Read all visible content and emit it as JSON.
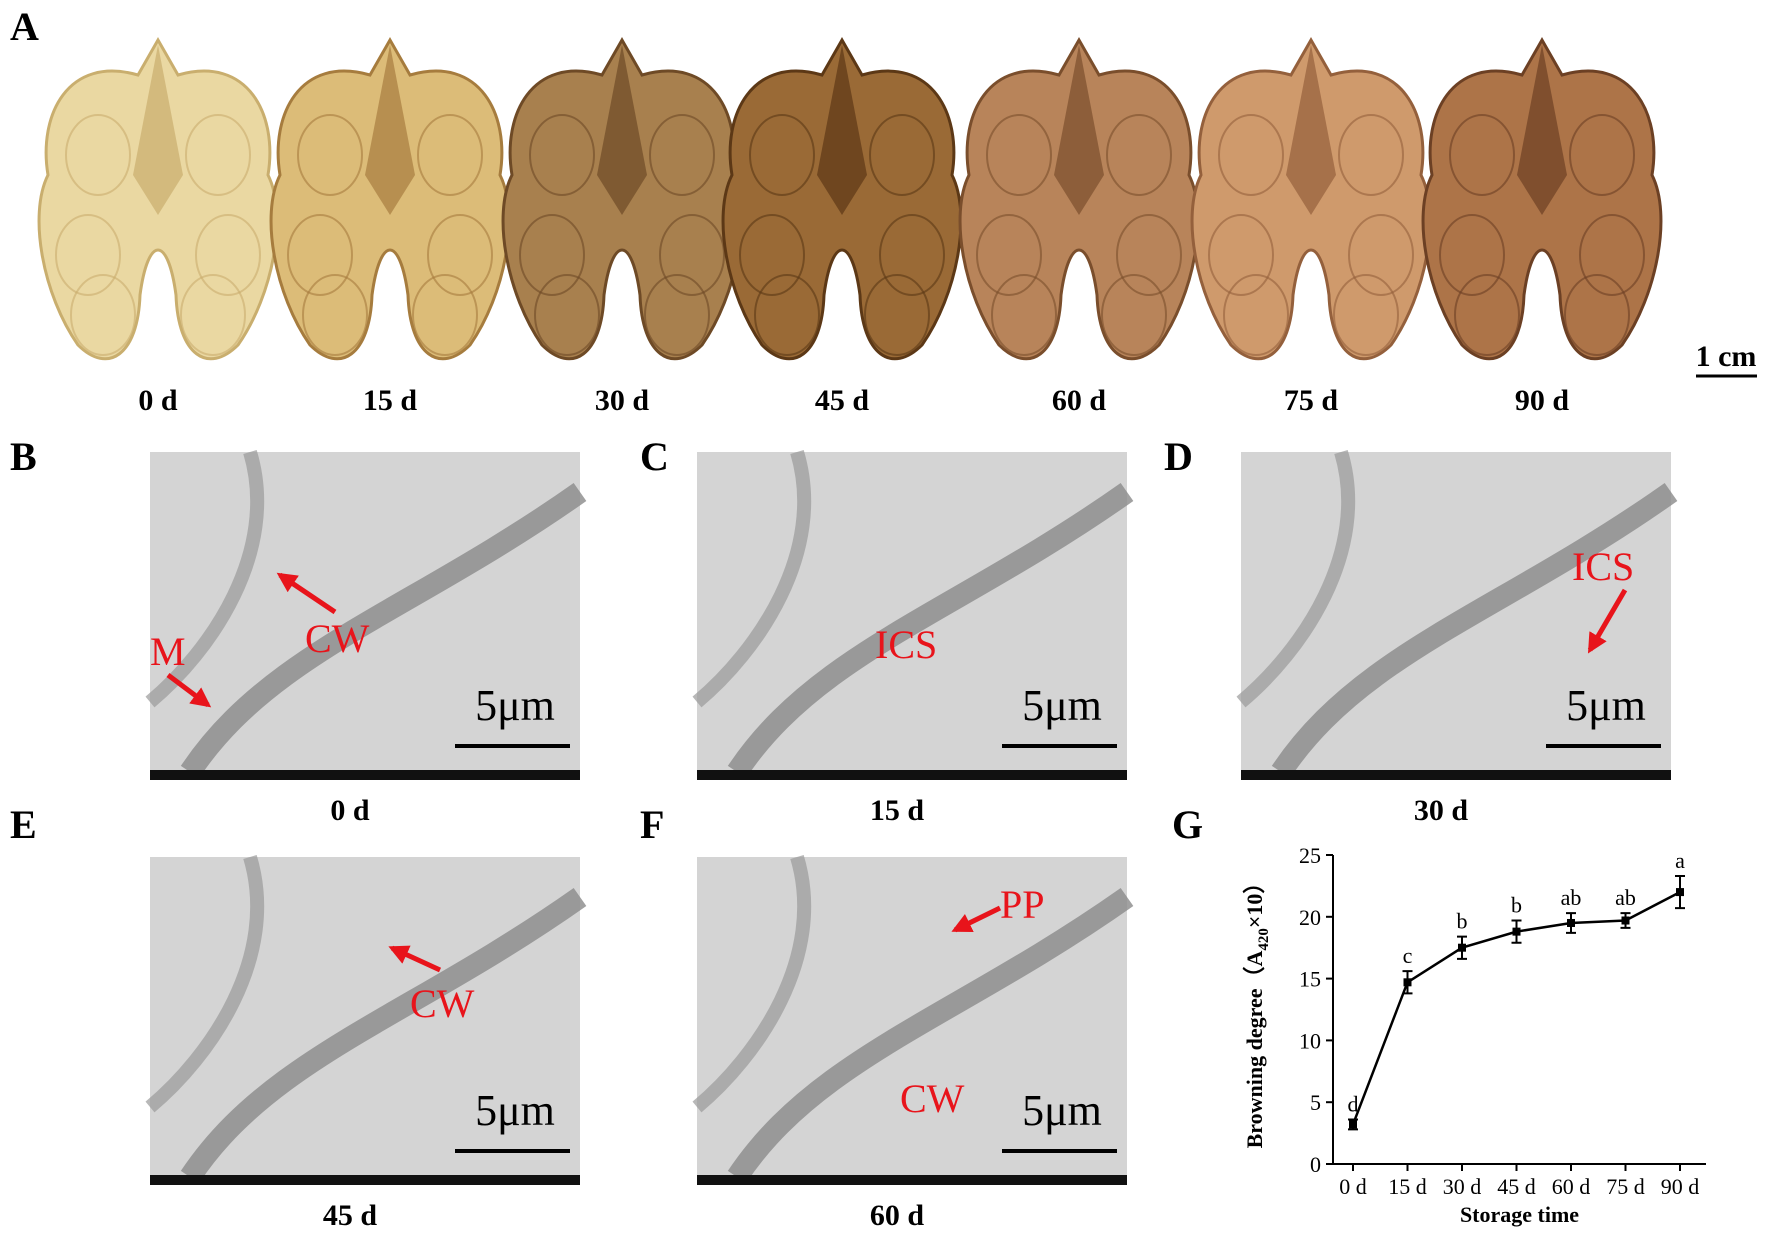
{
  "panel_labels": [
    "A",
    "B",
    "C",
    "D",
    "E",
    "F",
    "G"
  ],
  "walnut_captions": [
    "0 d",
    "15 d",
    "30 d",
    "45 d",
    "60 d",
    "75 d",
    "90 d"
  ],
  "scale_bar": "1 cm",
  "tem_panels": [
    {
      "caption": "0 d",
      "labels": [
        "CW",
        "M"
      ],
      "scale": "5μm"
    },
    {
      "caption": "15 d",
      "labels": [
        "ICS"
      ],
      "scale": "5μm"
    },
    {
      "caption": "30 d",
      "labels": [
        "ICS"
      ],
      "scale": "5μm"
    },
    {
      "caption": "45 d",
      "labels": [
        "CW"
      ],
      "scale": "5μm"
    },
    {
      "caption": "60 d",
      "labels": [
        "PP",
        "CW"
      ],
      "scale": "5μm"
    }
  ],
  "chart_data": {
    "type": "line",
    "categories": [
      "0 d",
      "15 d",
      "30 d",
      "45 d",
      "60 d",
      "75 d",
      "90 d"
    ],
    "values": [
      3.2,
      14.7,
      17.5,
      18.8,
      19.5,
      19.7,
      22.0
    ],
    "errors": [
      0.4,
      0.9,
      0.9,
      0.9,
      0.8,
      0.6,
      1.3
    ],
    "significance": [
      "d",
      "c",
      "b",
      "b",
      "ab",
      "ab",
      "a"
    ],
    "color": "#000000",
    "ylim": [
      0,
      25
    ],
    "yticks": [
      0,
      5,
      10,
      15,
      20,
      25
    ],
    "y_label": "Browning degree（A",
    "y_label_sub": "420",
    "y_label_end": "×10）",
    "x_label": "Storage time"
  }
}
